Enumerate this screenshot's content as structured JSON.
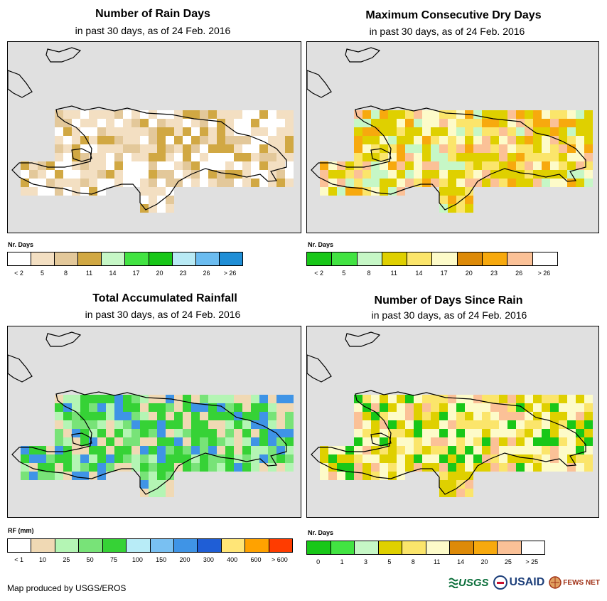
{
  "panels": [
    {
      "title": "Number of Rain Days",
      "subtitle": "in past 30 days, as of 24 Feb. 2016",
      "legend_title": "Nr. Days",
      "legend_colors": [
        "#ffffff",
        "#f3dfc2",
        "#e3c89a",
        "#d1a843",
        "#c6f7c6",
        "#42e342",
        "#18c718",
        "#b8eaf5",
        "#6bbcf0",
        "#1f8ed6"
      ],
      "legend_labels": [
        "< 2",
        "5",
        "8",
        "11",
        "14",
        "17",
        "20",
        "23",
        "26",
        "> 26"
      ]
    },
    {
      "title": "Maximum Consecutive Dry Days",
      "subtitle": "in past 30 days, as of 24 Feb. 2016",
      "legend_title": "Nr. Days",
      "legend_colors": [
        "#18c718",
        "#42e342",
        "#c6f7c6",
        "#dfd000",
        "#fbe56b",
        "#fdfbc9",
        "#dd8a08",
        "#f7a90e",
        "#fbc197",
        "#ffffff"
      ],
      "legend_labels": [
        "< 2",
        "5",
        "8",
        "11",
        "14",
        "17",
        "20",
        "23",
        "26",
        "> 26"
      ]
    },
    {
      "title": "Total Accumulated Rainfall",
      "subtitle": "in past 30 days, as of 24 Feb. 2016",
      "legend_title": "RF (mm)",
      "legend_colors": [
        "#ffffff",
        "#f0d9b4",
        "#b4f5b4",
        "#78e378",
        "#36d236",
        "#b8ecf7",
        "#79c0f2",
        "#3f94e6",
        "#1f5ed6",
        "#ffe577",
        "#ffa200",
        "#ff3c00"
      ],
      "legend_labels": [
        "< 1",
        "10",
        "25",
        "50",
        "75",
        "100",
        "150",
        "200",
        "300",
        "400",
        "600",
        "> 600"
      ]
    },
    {
      "title": "Number of Days Since Rain",
      "subtitle": "in past 30 days, as of 24 Feb. 2016",
      "legend_title": "Nr. Days",
      "legend_colors": [
        "#18c718",
        "#42e342",
        "#c6f7c6",
        "#dfd000",
        "#fbe56b",
        "#fdfbc9",
        "#dd8a08",
        "#f7a90e",
        "#fbc197",
        "#ffffff"
      ],
      "legend_labels": [
        "0",
        "1",
        "3",
        "5",
        "8",
        "11",
        "14",
        "20",
        "25",
        "> 25"
      ]
    }
  ],
  "credit": "Map produced by USGS/EROS",
  "logos": {
    "usgs": "USGS",
    "usaid": "USAID",
    "fews": "FEWS NET"
  }
}
